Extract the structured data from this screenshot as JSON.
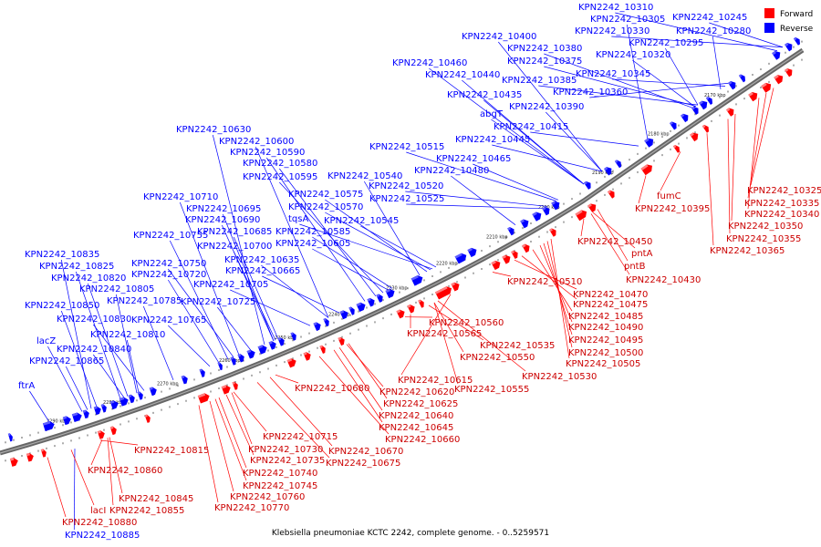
{
  "caption": "Klebsiella pneumoniae KCTC 2242, complete genome. - 0..5259571",
  "legend": {
    "forward_label": "Forward",
    "reverse_label": "Reverse",
    "forward_color": "#ff0000",
    "reverse_color": "#0000ff"
  },
  "colors": {
    "forward": "#ff0000",
    "forward_light": "#ff8080",
    "reverse": "#0000ff",
    "reverse_light": "#6060ff",
    "backbone": "#555555"
  },
  "tick_labels": [
    "2170 kbp",
    "2180 kbp",
    "2190 kbp",
    "2200 kbp",
    "2210 kbp",
    "2220 kbp",
    "2230 kbp",
    "2240 kbp",
    "2250 kbp",
    "2260 kbp",
    "2270 kbp",
    "2280 kbp",
    "2290 kbp"
  ],
  "reverse_labels": [
    "KPN2242_10310",
    "KPN2242_10305",
    "KPN2242_10245",
    "KPN2242_10330",
    "KPN2242_10280",
    "KPN2242_10295",
    "KPN2242_10400",
    "KPN2242_10380",
    "KPN2242_10320",
    "KPN2242_10460",
    "KPN2242_10375",
    "KPN2242_10440",
    "KPN2242_10345",
    "KPN2242_10385",
    "KPN2242_10360",
    "KPN2242_10435",
    "KPN2242_10390",
    "abgT",
    "KPN2242_10415",
    "KPN2242_10630",
    "KPN2242_10445",
    "KPN2242_10600",
    "KPN2242_10590",
    "KPN2242_10515",
    "KPN2242_10465",
    "KPN2242_10580",
    "KPN2242_10480",
    "KPN2242_10595",
    "KPN2242_10540",
    "KPN2242_10520",
    "KPN2242_10575",
    "KPN2242_10710",
    "KPN2242_10525",
    "KPN2242_10695",
    "KPN2242_10570",
    "tqsA",
    "KPN2242_10690",
    "KPN2242_10545",
    "KPN2242_10685",
    "KPN2242_10585",
    "KPN2242_10755",
    "KPN2242_10700",
    "KPN2242_10605",
    "KPN2242_10835",
    "KPN2242_10635",
    "KPN2242_10750",
    "KPN2242_10825",
    "KPN2242_10665",
    "KPN2242_10720",
    "KPN2242_10820",
    "KPN2242_10705",
    "KPN2242_10805",
    "KPN2242_10785",
    "KPN2242_10725",
    "KPN2242_10850",
    "KPN2242_10830",
    "KPN2242_10765",
    "KPN2242_10810",
    "lacZ",
    "KPN2242_10840",
    "KPN2242_10865",
    "ftrA",
    "KPN2242_10885"
  ],
  "forward_labels": [
    "KPN2242_10325",
    "fumC",
    "KPN2242_10335",
    "KPN2242_10395",
    "KPN2242_10340",
    "KPN2242_10350",
    "KPN2242_10450",
    "KPN2242_10355",
    "pntA",
    "KPN2242_10365",
    "pntB",
    "KPN2242_10430",
    "KPN2242_10510",
    "KPN2242_10470",
    "KPN2242_10475",
    "KPN2242_10485",
    "KPN2242_10560",
    "KPN2242_10490",
    "KPN2242_10565",
    "KPN2242_10495",
    "KPN2242_10535",
    "KPN2242_10500",
    "KPN2242_10550",
    "KPN2242_10505",
    "KPN2242_10530",
    "KPN2242_10615",
    "KPN2242_10680",
    "KPN2242_10555",
    "KPN2242_10620",
    "KPN2242_10625",
    "KPN2242_10640",
    "KPN2242_10645",
    "KPN2242_10660",
    "KPN2242_10715",
    "KPN2242_10815",
    "KPN2242_10730",
    "KPN2242_10670",
    "KPN2242_10735",
    "KPN2242_10675",
    "KPN2242_10860",
    "KPN2242_10740",
    "KPN2242_10745",
    "KPN2242_10845",
    "KPN2242_10760",
    "lacI",
    "KPN2242_10855",
    "KPN2242_10770",
    "KPN2242_10880"
  ]
}
